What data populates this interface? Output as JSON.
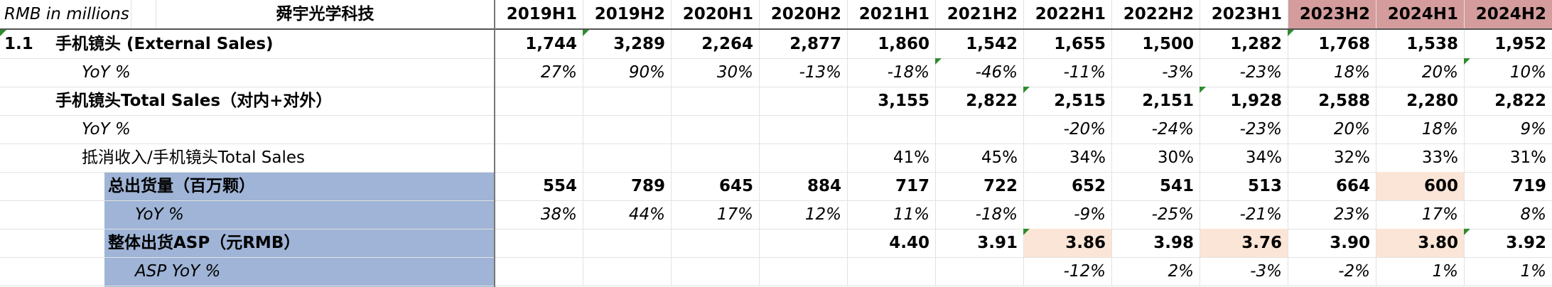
{
  "header": {
    "units_label": "RMB in millions",
    "company": "舜宇光学科技",
    "periods": [
      "2019H1",
      "2019H2",
      "2020H1",
      "2020H2",
      "2021H1",
      "2021H2",
      "2022H1",
      "2022H2",
      "2023H1",
      "2023H2",
      "2024H1",
      "2024H2"
    ],
    "highlight_color": "#d49c9c"
  },
  "rows": [
    {
      "index": "1.1",
      "label": "手机镜头 (External Sales)",
      "values": [
        "1,744",
        "3,289",
        "2,264",
        "2,877",
        "1,860",
        "1,542",
        "1,655",
        "1,500",
        "1,282",
        "1,768",
        "1,538",
        "1,952"
      ]
    },
    {
      "label": "YoY %",
      "values": [
        "27%",
        "90%",
        "30%",
        "-13%",
        "-18%",
        "-46%",
        "-11%",
        "-3%",
        "-23%",
        "18%",
        "20%",
        "10%"
      ]
    },
    {
      "label": "手机镜头Total Sales（对内+对外）",
      "values": [
        "",
        "",
        "",
        "",
        "3,155",
        "2,822",
        "2,515",
        "2,151",
        "1,928",
        "2,588",
        "2,280",
        "2,822"
      ]
    },
    {
      "label": "YoY %",
      "values": [
        "",
        "",
        "",
        "",
        "",
        "",
        "-20%",
        "-24%",
        "-23%",
        "20%",
        "18%",
        "9%"
      ]
    },
    {
      "label": "抵消收入/手机镜头Total Sales",
      "values": [
        "",
        "",
        "",
        "",
        "41%",
        "45%",
        "34%",
        "30%",
        "34%",
        "32%",
        "33%",
        "31%"
      ]
    },
    {
      "label": "总出货量（百万颗）",
      "values": [
        "554",
        "789",
        "645",
        "884",
        "717",
        "722",
        "652",
        "541",
        "513",
        "664",
        "600",
        "719"
      ]
    },
    {
      "label": "YoY %",
      "values": [
        "38%",
        "44%",
        "17%",
        "12%",
        "11%",
        "-18%",
        "-9%",
        "-25%",
        "-21%",
        "23%",
        "17%",
        "8%"
      ]
    },
    {
      "label": "整体出货ASP（元RMB）",
      "values": [
        "",
        "",
        "",
        "",
        "4.40",
        "3.91",
        "3.86",
        "3.98",
        "3.76",
        "3.90",
        "3.80",
        "3.92"
      ]
    },
    {
      "label": "ASP YoY %",
      "values": [
        "",
        "",
        "",
        "",
        "",
        "",
        "-12%",
        "2%",
        "-3%",
        "-2%",
        "1%",
        "1%"
      ]
    }
  ],
  "colors": {
    "label_fill": "#9fb4d6",
    "highlight_cell": "#fbe5d6",
    "negative_text": "#e00000",
    "muted_text": "#a6a6a6",
    "comment_marker": "#2e8b2e"
  }
}
